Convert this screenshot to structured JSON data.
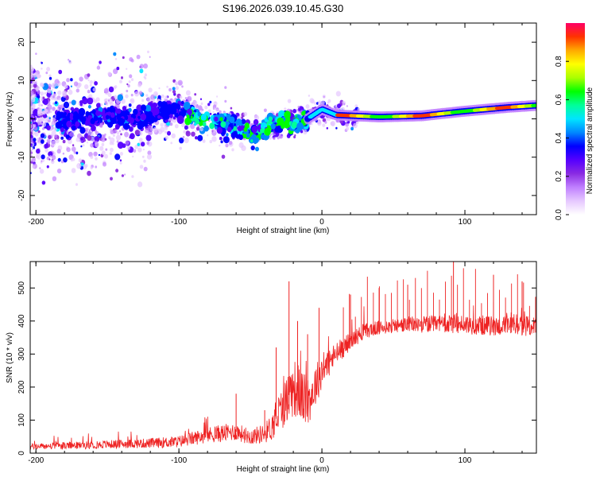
{
  "title": "S196.2026.039.10.45.G30",
  "chart_data": [
    {
      "type": "heatmap",
      "xlabel": "Height of straight line (km)",
      "ylabel": "Frequency (Hz)",
      "xlim": [
        -204,
        150
      ],
      "ylim": [
        -25,
        25
      ],
      "xticks": [
        -200,
        -100,
        0,
        100
      ],
      "yticks": [
        -20,
        -10,
        0,
        10,
        20
      ],
      "colorbar": {
        "label": "Normalized spectral amplitude",
        "ticks": [
          0.0,
          0.2,
          0.4,
          0.6,
          0.8
        ],
        "range": [
          0,
          1
        ],
        "colors": [
          "#ffffff",
          "#e6c8ff",
          "#c080ff",
          "#8a2be2",
          "#5500ff",
          "#0000ff",
          "#0088ff",
          "#00e5ff",
          "#00ff99",
          "#00ff00",
          "#aaff00",
          "#ffff00",
          "#ffaa00",
          "#ff3300",
          "#ff0066"
        ]
      },
      "ridge": [
        {
          "x": -190,
          "f": 0.0
        },
        {
          "x": -170,
          "f": -0.5
        },
        {
          "x": -150,
          "f": 0.5
        },
        {
          "x": -130,
          "f": 0.0
        },
        {
          "x": -115,
          "f": 2.0
        },
        {
          "x": -100,
          "f": 2.5
        },
        {
          "x": -85,
          "f": 1.0
        },
        {
          "x": -70,
          "f": -1.0
        },
        {
          "x": -55,
          "f": -3.0
        },
        {
          "x": -45,
          "f": -4.0
        },
        {
          "x": -35,
          "f": -2.0
        },
        {
          "x": -25,
          "f": 0.0
        },
        {
          "x": -20,
          "f": -1.5
        },
        {
          "x": -10,
          "f": 0.0
        },
        {
          "x": 0,
          "f": 2.5
        },
        {
          "x": 10,
          "f": 1.0
        },
        {
          "x": 40,
          "f": 0.5
        },
        {
          "x": 70,
          "f": 0.8
        },
        {
          "x": 100,
          "f": 2.0
        },
        {
          "x": 130,
          "f": 3.0
        },
        {
          "x": 150,
          "f": 3.5
        }
      ]
    },
    {
      "type": "line",
      "xlabel": "Height of straight line (km)",
      "ylabel": "SNR (10 * v/v)",
      "xlim": [
        -204,
        150
      ],
      "ylim": [
        0,
        580
      ],
      "xticks": [
        -200,
        -100,
        0,
        100
      ],
      "yticks": [
        0,
        100,
        200,
        300,
        400,
        500
      ],
      "line_color": "#ee2222",
      "series": [
        {
          "name": "SNR",
          "x": [
            -204,
            -180,
            -160,
            -140,
            -120,
            -100,
            -90,
            -80,
            -70,
            -60,
            -50,
            -40,
            -35,
            -30,
            -25,
            -20,
            -15,
            -10,
            -5,
            0,
            10,
            20,
            30,
            40,
            50,
            60,
            80,
            100,
            120,
            140,
            150
          ],
          "y": [
            20,
            22,
            25,
            28,
            30,
            35,
            45,
            55,
            60,
            65,
            50,
            60,
            80,
            120,
            160,
            200,
            180,
            150,
            200,
            250,
            300,
            340,
            370,
            380,
            385,
            390,
            390,
            390,
            385,
            385,
            385
          ],
          "noise": [
            15,
            18,
            20,
            22,
            25,
            30,
            35,
            40,
            45,
            45,
            40,
            50,
            70,
            100,
            120,
            150,
            140,
            120,
            110,
            90,
            60,
            45,
            40,
            35,
            35,
            40,
            45,
            50,
            50,
            50,
            50
          ],
          "peaks": [
            {
              "x": -60,
              "y": 180
            },
            {
              "x": -40,
              "y": 130
            },
            {
              "x": -32,
              "y": 320
            },
            {
              "x": -23,
              "y": 520
            },
            {
              "x": -17,
              "y": 400
            },
            {
              "x": -10,
              "y": 360
            },
            {
              "x": -2,
              "y": 440
            },
            {
              "x": 20,
              "y": 480
            },
            {
              "x": 40,
              "y": 500
            },
            {
              "x": 60,
              "y": 510
            },
            {
              "x": 92,
              "y": 580
            },
            {
              "x": 120,
              "y": 540
            },
            {
              "x": 140,
              "y": 520
            }
          ]
        }
      ]
    }
  ]
}
